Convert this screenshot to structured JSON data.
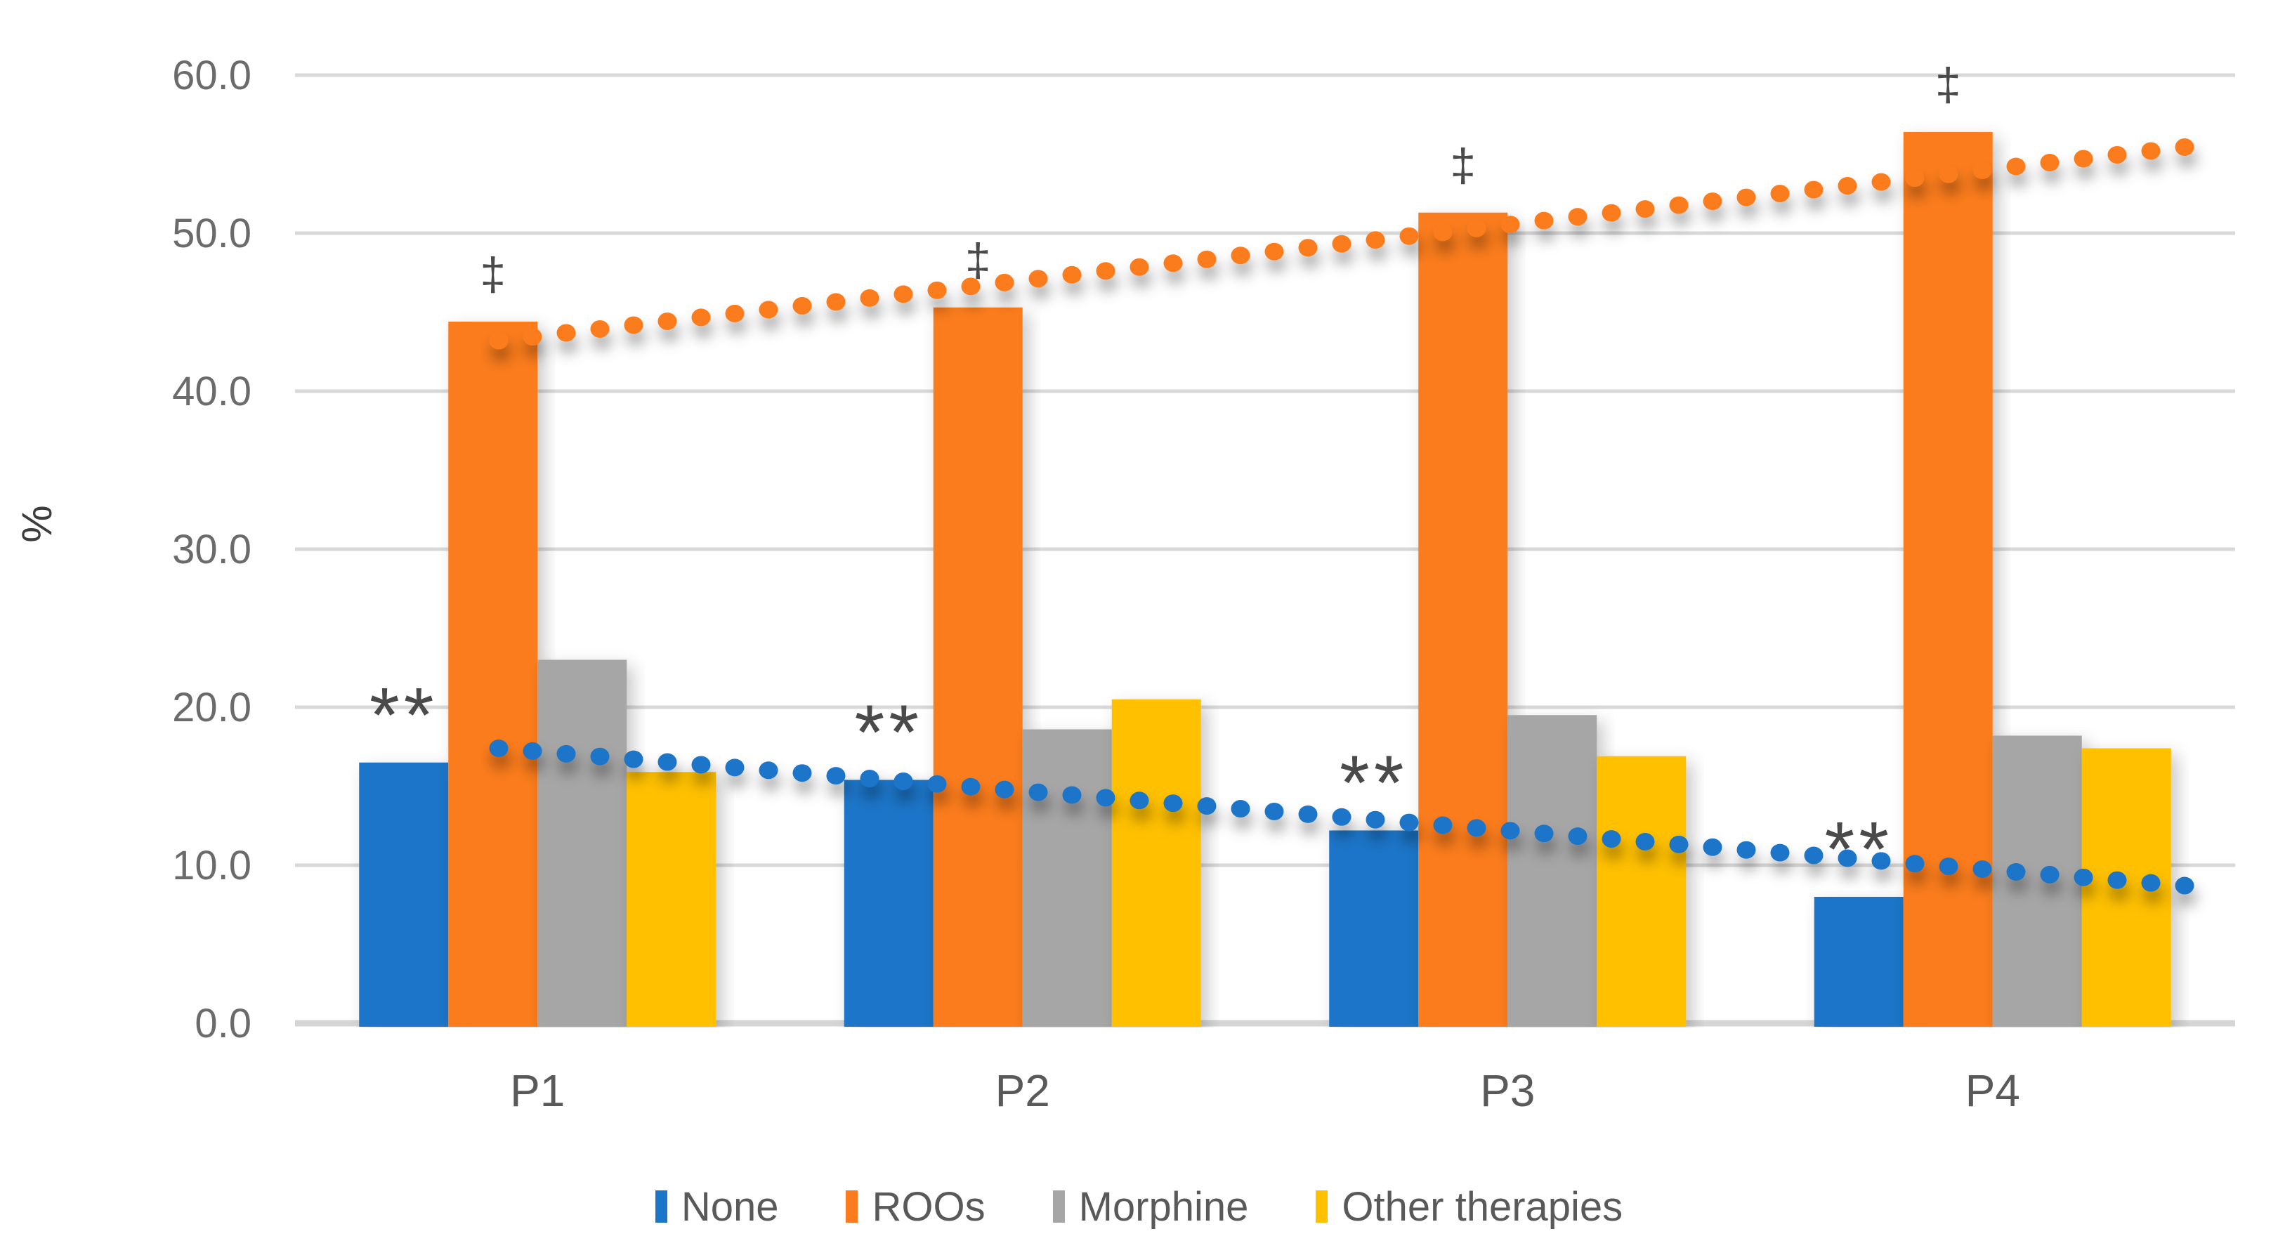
{
  "chart_data": {
    "type": "bar",
    "title": "",
    "ylabel": "%",
    "xlabel": "",
    "categories": [
      "P1",
      "P2",
      "P3",
      "P4"
    ],
    "series": [
      {
        "name": "None",
        "color": "#1B75C8",
        "values": [
          16.5,
          15.4,
          12.2,
          8.0
        ],
        "annotation": "**"
      },
      {
        "name": "ROOs",
        "color": "#FB7C1F",
        "values": [
          44.4,
          45.3,
          51.3,
          56.4
        ],
        "annotation": "‡"
      },
      {
        "name": "Morphine",
        "color": "#A6A6A6",
        "values": [
          23.0,
          18.6,
          19.5,
          18.2
        ],
        "annotation": ""
      },
      {
        "name": "Other therapies",
        "color": "#FFC000",
        "values": [
          15.9,
          20.5,
          16.9,
          17.4
        ],
        "annotation": ""
      }
    ],
    "trendlines": [
      {
        "series": "ROOs",
        "style": "dotted",
        "color": "#FB7C1F",
        "start_value": 43.2,
        "end_value": 55.6
      },
      {
        "series": "None",
        "style": "dotted",
        "color": "#1B75C8",
        "start_value": 17.4,
        "end_value": 8.6
      }
    ],
    "yticks": {
      "values": [
        60,
        50,
        40,
        30,
        20,
        10,
        0
      ],
      "labels": [
        "60.0",
        "50.0",
        "40.0",
        "30.0",
        "20.0",
        "10.0",
        "0.0"
      ]
    },
    "ylim": [
      0,
      60
    ],
    "grid": true,
    "legend_position": "bottom",
    "colors": {
      "gridline": "#D9D9D9",
      "axis_line": "#D6D6D6",
      "tick_text": "#6b6b6b",
      "category_text": "#595959",
      "annotation_text": "#4a4a4a"
    }
  }
}
